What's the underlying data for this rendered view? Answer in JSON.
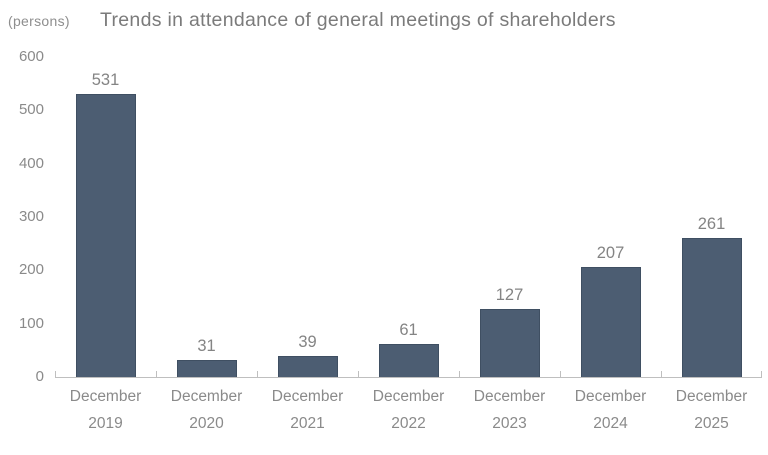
{
  "chart_data": {
    "type": "bar",
    "title": "Trends in attendance of general meetings of shareholders",
    "unit_label": "(persons)",
    "categories": [
      "December 2019",
      "December 2020",
      "December 2021",
      "December 2022",
      "December 2023",
      "December 2024",
      "December 2025"
    ],
    "values": [
      531,
      31,
      39,
      61,
      127,
      207,
      261
    ],
    "xlabel": "",
    "ylabel": "persons",
    "ylim": [
      0,
      600
    ],
    "yticks": [
      0,
      100,
      200,
      300,
      400,
      500,
      600
    ],
    "grid": false,
    "legend_position": "none",
    "data_labels": true,
    "colors": {
      "bar_fill": "#4C5D72",
      "bar_border": "#3F4F62",
      "axis_line": "#BFBFBF",
      "tick_label": "#8A8A8A",
      "data_label": "#848484",
      "title": "#7B7B7B",
      "unit_label": "#8E8E8E",
      "background": "#FFFFFF"
    }
  }
}
